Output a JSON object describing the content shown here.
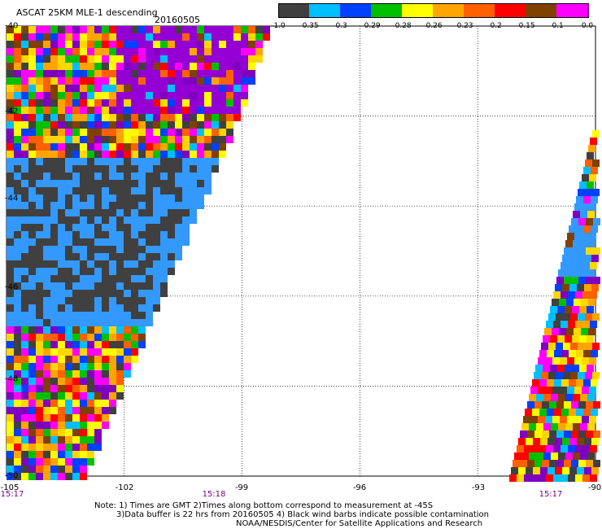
{
  "header": {
    "title": "ASCAT 25KM MLE-1 descending",
    "date": "20160505"
  },
  "colorbar": {
    "labels": [
      "-1.0",
      "-0.35",
      "-0.3",
      "-0.29",
      "-0.28",
      "-0.26",
      "-0.23",
      "-0.2",
      "-0.15",
      "-0.1",
      "0.0"
    ],
    "colors": [
      "#404040",
      "#00bfff",
      "#0040ff",
      "#00c000",
      "#ffff00",
      "#ffa500",
      "#ff6000",
      "#ff0000",
      "#804000",
      "#ff00ff",
      "#8000c0"
    ]
  },
  "axes": {
    "lat_labels": [
      "-40",
      "-42",
      "-44",
      "-46",
      "-48",
      "-50"
    ],
    "lon_labels": [
      "-105",
      "-102",
      "-99",
      "-96",
      "-93",
      "-90"
    ],
    "time_labels": [
      "15:17",
      "15:18",
      "15:17"
    ]
  },
  "notes": {
    "line1": "Note: 1) Times are GMT 2)Times along bottom correspond to measurement at -45S",
    "line2": "3)Data buffer is 22 hrs from 20160505 4) Black wind barbs indicate possible contamination",
    "line3": "NOAA/NESDIS/Center for Satellite Applications and Research"
  },
  "swath_colors": {
    "rain_black": "#404040",
    "ocean_blue": "#3399ff",
    "purple": "#9400d3"
  }
}
